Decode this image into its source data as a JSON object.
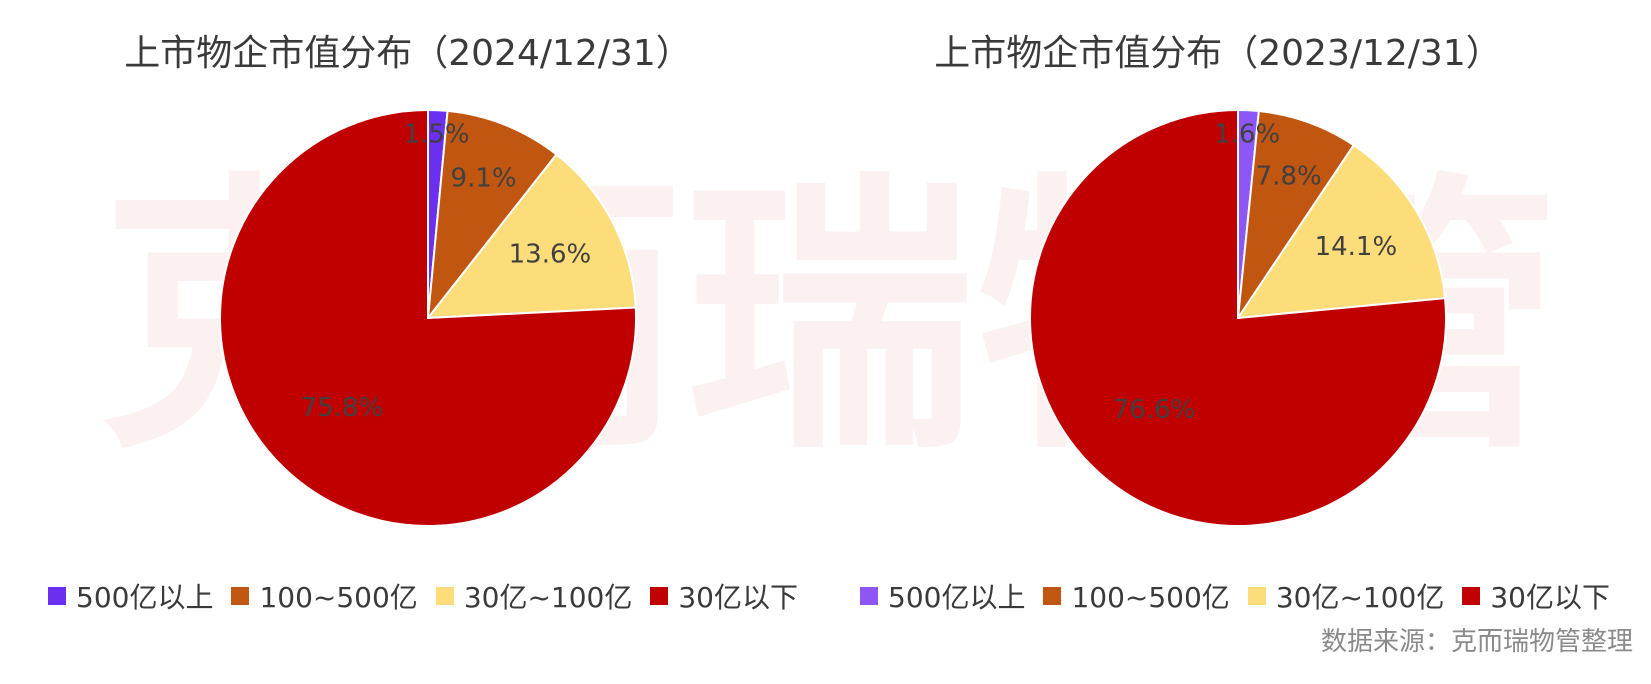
{
  "watermark": [
    "克",
    "而",
    "瑞",
    "物",
    "管"
  ],
  "chart_data": [
    {
      "type": "pie",
      "title": "上市物企市值分布（2024/12/31）",
      "categories": [
        "500亿以上",
        "100~500亿",
        "30亿~100亿",
        "30亿以下"
      ],
      "values": [
        1.5,
        9.1,
        13.6,
        75.8
      ],
      "labels": [
        "1.5%",
        "9.1%",
        "13.6%",
        "75.8%"
      ],
      "colors": [
        "#6b2ff0",
        "#c0560f",
        "#fddc7a",
        "#c00000"
      ],
      "legend_position": "bottom"
    },
    {
      "type": "pie",
      "title": "上市物企市值分布（2023/12/31）",
      "categories": [
        "500亿以上",
        "100~500亿",
        "30亿~100亿",
        "30亿以下"
      ],
      "values": [
        1.6,
        7.8,
        14.1,
        76.6
      ],
      "labels": [
        "1.6%",
        "7.8%",
        "14.1%",
        "76.6%"
      ],
      "colors": [
        "#8c57f5",
        "#c0560f",
        "#fddc7a",
        "#c00000"
      ],
      "legend_position": "bottom"
    }
  ],
  "source_note": "数据来源：克而瑞物管整理"
}
